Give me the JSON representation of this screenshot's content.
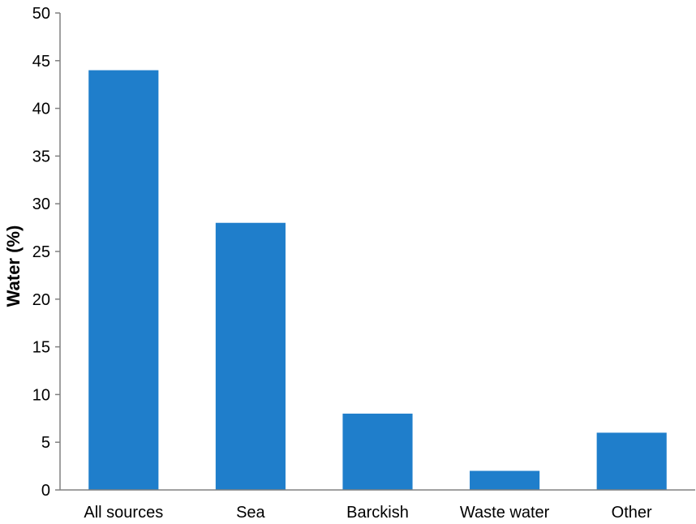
{
  "chart_data": {
    "type": "bar",
    "title": "",
    "xlabel": "",
    "ylabel": "Water (%)",
    "categories": [
      "All sources",
      "Sea",
      "Barckish",
      "Waste water",
      "Other"
    ],
    "values": [
      44,
      28,
      8,
      2,
      6
    ],
    "ylim": [
      0,
      50
    ],
    "yticks": [
      "0",
      "5",
      "10",
      "15",
      "20",
      "25",
      "30",
      "35",
      "40",
      "45",
      "50"
    ],
    "grid": false,
    "legend": "none",
    "bar_color": "#1f7ecb"
  }
}
